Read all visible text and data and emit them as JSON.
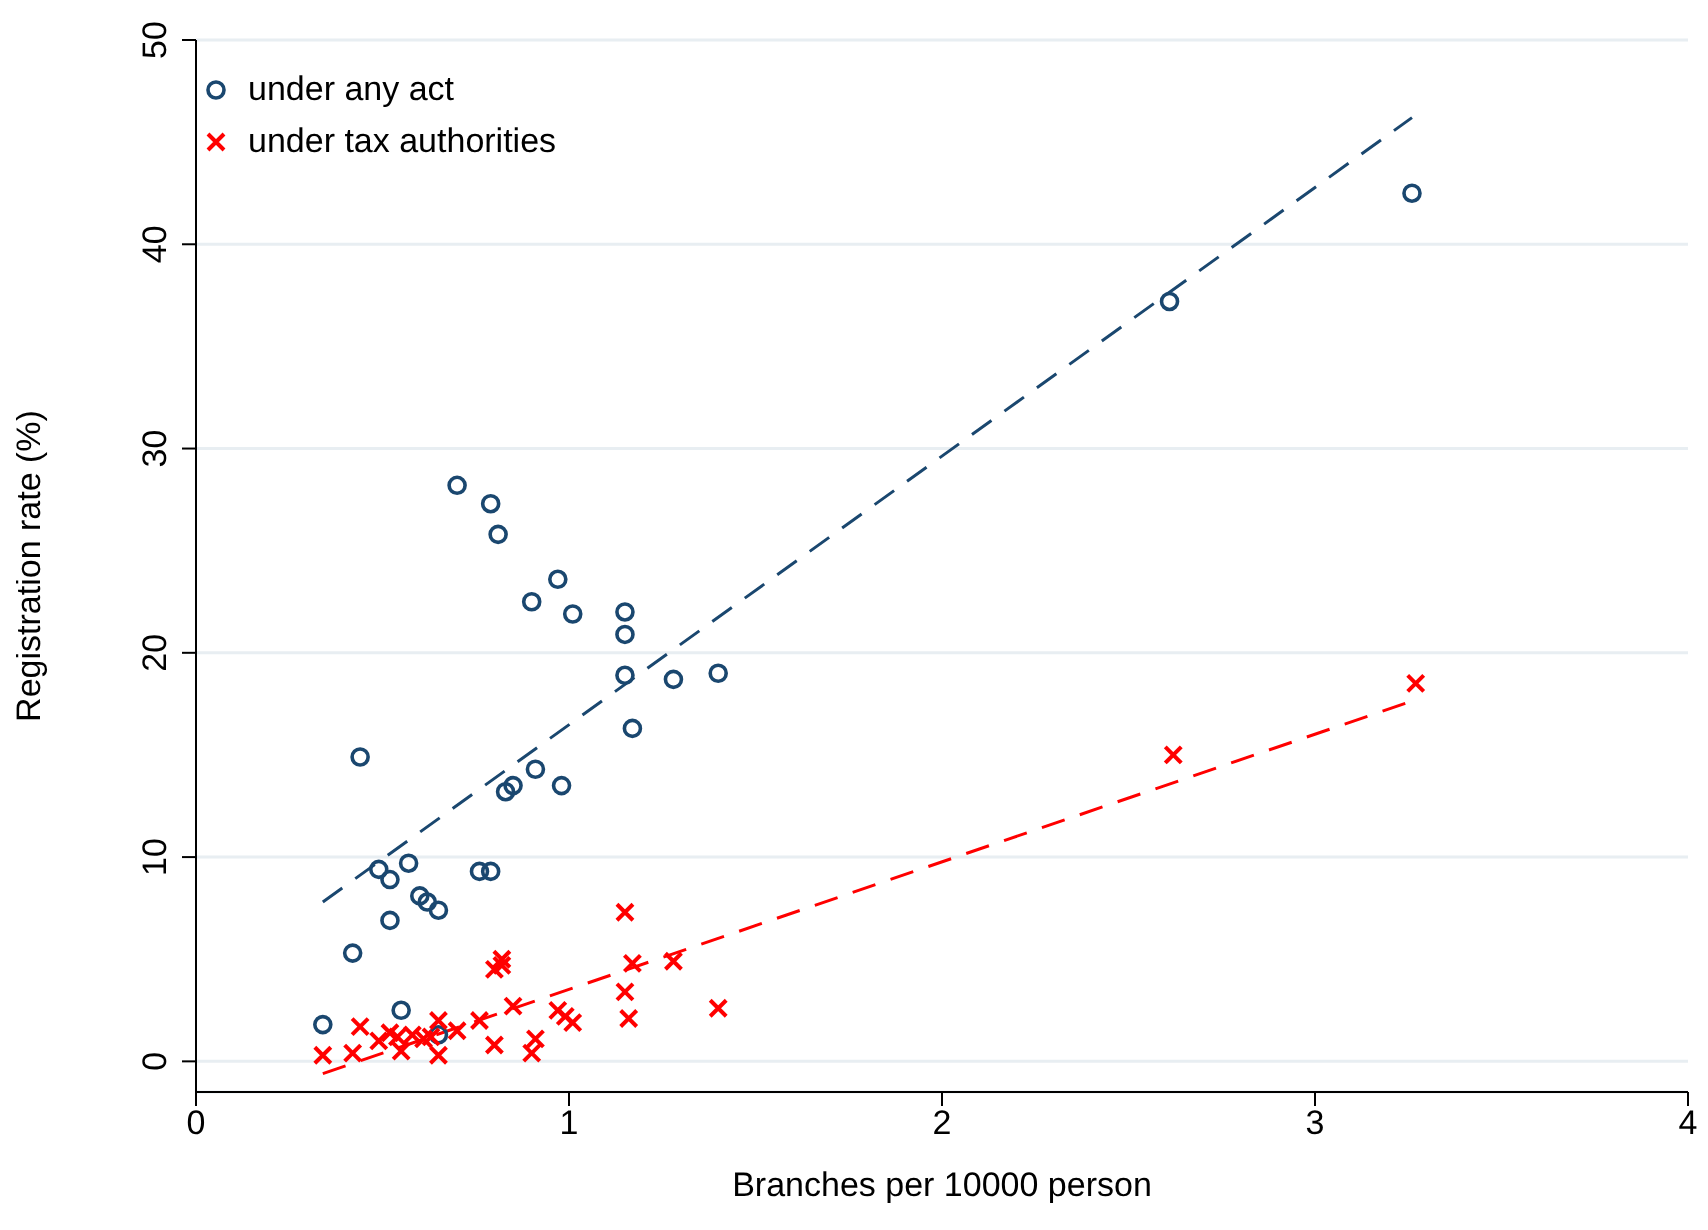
{
  "chart_data": {
    "type": "scatter",
    "xlabel": "Branches per 10000 person",
    "ylabel": "Registration rate (%)",
    "xlim": [
      0,
      4
    ],
    "xticks": [
      0,
      1,
      2,
      3,
      4
    ],
    "ylim": [
      -1.5,
      50
    ],
    "yticks": [
      0,
      10,
      20,
      30,
      40,
      50
    ],
    "grid": "y",
    "legend": "top left",
    "series": [
      {
        "name": "under any act",
        "color": "#1a476f",
        "marker": "circle",
        "x": [
          0.34,
          0.42,
          0.44,
          0.49,
          0.52,
          0.52,
          0.55,
          0.57,
          0.6,
          0.62,
          0.65,
          0.65,
          0.7,
          0.76,
          0.79,
          0.79,
          0.81,
          0.83,
          0.85,
          0.9,
          0.91,
          0.97,
          0.98,
          1.01,
          1.15,
          1.15,
          1.15,
          1.17,
          1.28,
          1.4,
          2.61,
          3.26
        ],
        "values": [
          1.8,
          5.3,
          14.9,
          9.4,
          8.9,
          6.9,
          2.5,
          9.7,
          8.1,
          7.8,
          7.4,
          1.3,
          28.2,
          9.3,
          27.3,
          9.3,
          25.8,
          13.2,
          13.5,
          22.5,
          14.3,
          23.6,
          13.5,
          21.9,
          22,
          20.9,
          18.9,
          16.3,
          18.7,
          19,
          37.2,
          42.5
        ]
      },
      {
        "name": "under tax authorities",
        "color": "#ff0000",
        "marker": "cross",
        "x": [
          0.34,
          0.42,
          0.44,
          0.49,
          0.52,
          0.54,
          0.55,
          0.58,
          0.61,
          0.63,
          0.65,
          0.65,
          0.7,
          0.76,
          0.8,
          0.8,
          0.82,
          0.82,
          0.85,
          0.91,
          0.9,
          0.97,
          0.99,
          1.01,
          1.15,
          1.15,
          1.16,
          1.17,
          1.28,
          1.4,
          2.62,
          3.27
        ],
        "values": [
          0.3,
          0.4,
          1.7,
          1,
          1.4,
          1.2,
          0.5,
          1.3,
          1.1,
          1.2,
          2,
          0.3,
          1.5,
          2,
          0.8,
          4.5,
          5,
          4.7,
          2.7,
          1.1,
          0.4,
          2.5,
          2.2,
          1.9,
          7.3,
          3.4,
          2.1,
          4.8,
          4.9,
          2.6,
          15,
          18.5
        ]
      },
      {
        "type": "line",
        "color": "#1a476f",
        "line_style": "dashed",
        "x": [
          0.34,
          3.26
        ],
        "values": [
          7.8,
          46.2
        ]
      },
      {
        "type": "line",
        "color": "#ff0000",
        "line_style": "dashed",
        "x": [
          0.34,
          3.27
        ],
        "values": [
          -0.6,
          17.7
        ]
      }
    ]
  }
}
